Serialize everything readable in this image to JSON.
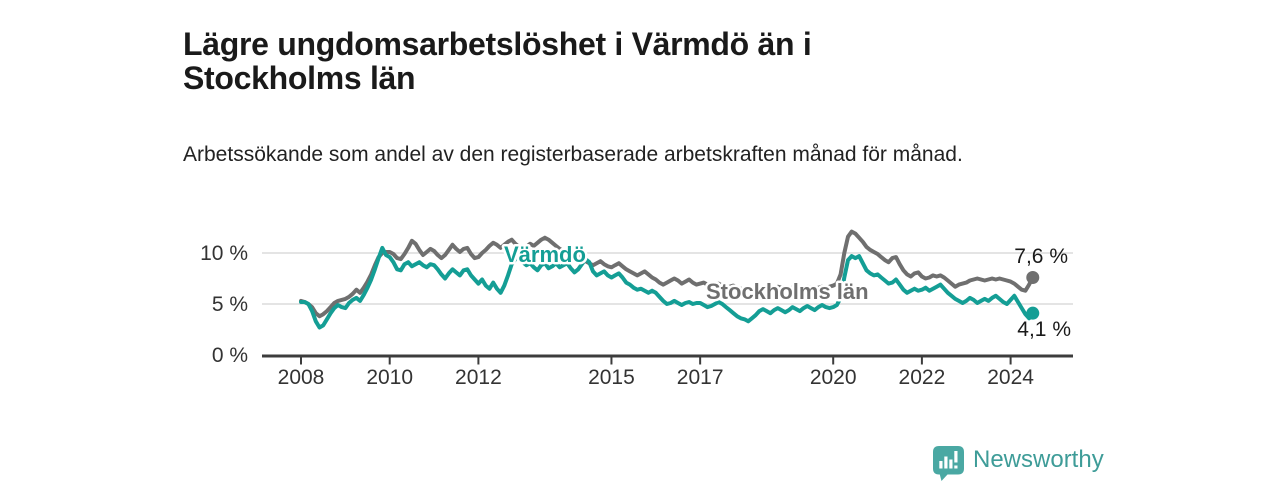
{
  "header": {
    "title": "Lägre ungdomsarbetslöshet i Värmdö än i Stockholms län",
    "subtitle": "Arbetssökande som andel av den registerbaserade arbetskraften månad för månad."
  },
  "footer": {
    "brand": "Newsworthy",
    "logo_icon": "speech-bubble-bar-chart",
    "brand_text_color": "#3e9c98",
    "logo_color": "#4aa8a3"
  },
  "chart_data": {
    "type": "line",
    "title": "Lägre ungdomsarbetslöshet i Värmdö än i Stockholms län",
    "xlabel": "",
    "ylabel": "",
    "x_start_year": 2008,
    "x_step_months": 1,
    "ylim": [
      0,
      12.5
    ],
    "grid": true,
    "grid_values": [
      5,
      10
    ],
    "x_ticks": [
      "2008",
      "2010",
      "2012",
      "2015",
      "2017",
      "2020",
      "2022",
      "2024"
    ],
    "y_ticks": [
      {
        "value": 0,
        "label": "0 %"
      },
      {
        "value": 5,
        "label": "5 %"
      },
      {
        "value": 10,
        "label": "10 %"
      }
    ],
    "colors": {
      "gridline": "#dbdbdb",
      "axis": "#3c3c3c",
      "tick_text": "#333333",
      "end_label_text": "#1a1a1a"
    },
    "series": [
      {
        "name": "Stockholms län",
        "color": "#6f6f6f",
        "end_label": "7,6 %",
        "last_value": 7.6,
        "label_x": 706,
        "label_y": 299,
        "end_label_x": 1068,
        "end_label_y": 263,
        "values": [
          5.3,
          5.2,
          5.0,
          4.7,
          4.1,
          3.8,
          4.0,
          4.3,
          4.7,
          5.1,
          5.3,
          5.4,
          5.5,
          5.7,
          6.0,
          6.4,
          6.1,
          6.6,
          7.2,
          7.9,
          8.8,
          9.6,
          10.0,
          10.1,
          10.1,
          9.9,
          9.5,
          9.4,
          9.9,
          10.5,
          11.2,
          10.9,
          10.3,
          9.8,
          10.1,
          10.4,
          10.2,
          9.8,
          9.5,
          9.8,
          10.3,
          10.8,
          10.4,
          10.1,
          10.4,
          10.5,
          9.9,
          9.5,
          9.6,
          10.0,
          10.3,
          10.7,
          11.0,
          10.8,
          10.5,
          10.8,
          11.1,
          11.3,
          10.9,
          10.6,
          10.4,
          10.6,
          10.9,
          10.7,
          11.0,
          11.3,
          11.5,
          11.3,
          11.0,
          10.7,
          10.4,
          10.2,
          10.1,
          9.9,
          9.6,
          9.8,
          9.5,
          9.2,
          9.0,
          8.8,
          9.0,
          9.2,
          8.9,
          8.7,
          8.6,
          8.8,
          9.0,
          8.7,
          8.4,
          8.2,
          8.0,
          7.8,
          8.0,
          8.2,
          7.9,
          7.6,
          7.4,
          7.1,
          6.9,
          7.1,
          7.3,
          7.5,
          7.3,
          7.0,
          7.2,
          7.4,
          7.1,
          6.9,
          7.0,
          7.1,
          6.9,
          6.7,
          6.8,
          7.0,
          6.8,
          6.6,
          6.7,
          6.8,
          6.6,
          6.5,
          6.4,
          6.3,
          6.5,
          6.6,
          6.5,
          6.7,
          6.6,
          6.4,
          6.5,
          6.7,
          6.6,
          6.5,
          6.5,
          6.6,
          6.5,
          6.4,
          6.5,
          6.7,
          6.6,
          6.5,
          6.6,
          6.7,
          6.6,
          6.7,
          6.8,
          7.0,
          7.9,
          10.0,
          11.6,
          12.1,
          11.9,
          11.5,
          11.1,
          10.6,
          10.3,
          10.1,
          9.9,
          9.6,
          9.3,
          9.1,
          9.5,
          9.6,
          8.9,
          8.3,
          7.9,
          7.7,
          8.0,
          8.1,
          7.7,
          7.5,
          7.6,
          7.8,
          7.7,
          7.8,
          7.6,
          7.3,
          7.0,
          6.7,
          6.9,
          7.0,
          7.1,
          7.3,
          7.4,
          7.5,
          7.4,
          7.3,
          7.4,
          7.5,
          7.4,
          7.5,
          7.4,
          7.3,
          7.2,
          7.0,
          6.7,
          6.4,
          6.3,
          6.9,
          7.6
        ]
      },
      {
        "name": "Värmdö",
        "color": "#149e95",
        "end_label": "4,1 %",
        "last_value": 4.1,
        "label_x": 504,
        "label_y": 262,
        "end_label_x": 1071,
        "end_label_y": 336,
        "values": [
          5.2,
          5.2,
          5.0,
          4.3,
          3.3,
          2.7,
          2.9,
          3.5,
          4.1,
          4.6,
          4.9,
          4.7,
          4.6,
          5.1,
          5.4,
          5.6,
          5.3,
          5.9,
          6.6,
          7.4,
          8.4,
          9.5,
          10.5,
          9.8,
          9.6,
          9.1,
          8.4,
          8.3,
          8.9,
          9.1,
          8.7,
          8.9,
          9.1,
          8.8,
          8.6,
          8.9,
          8.8,
          8.4,
          7.9,
          7.5,
          8.0,
          8.4,
          8.1,
          7.8,
          8.3,
          8.4,
          7.8,
          7.4,
          7.0,
          7.4,
          6.8,
          6.5,
          7.1,
          6.5,
          6.1,
          6.8,
          7.8,
          8.9,
          9.4,
          9.7,
          9.1,
          8.8,
          9.0,
          8.6,
          8.3,
          8.8,
          9.0,
          8.5,
          8.7,
          9.0,
          8.6,
          8.8,
          9.0,
          8.5,
          8.1,
          8.4,
          8.9,
          9.4,
          9.1,
          8.2,
          7.8,
          8.0,
          8.2,
          7.8,
          7.6,
          7.8,
          8.0,
          7.6,
          7.1,
          6.9,
          6.6,
          6.4,
          6.5,
          6.3,
          6.1,
          6.3,
          6.1,
          5.7,
          5.3,
          5.0,
          5.1,
          5.3,
          5.1,
          4.9,
          5.1,
          5.2,
          5.0,
          5.1,
          5.1,
          4.9,
          4.7,
          4.8,
          5.0,
          5.2,
          5.0,
          4.7,
          4.4,
          4.1,
          3.8,
          3.6,
          3.5,
          3.3,
          3.6,
          3.9,
          4.3,
          4.5,
          4.3,
          4.1,
          4.4,
          4.6,
          4.4,
          4.2,
          4.4,
          4.7,
          4.5,
          4.3,
          4.6,
          4.8,
          4.6,
          4.4,
          4.7,
          4.9,
          4.7,
          4.6,
          4.7,
          4.9,
          5.6,
          7.6,
          9.3,
          9.7,
          9.5,
          9.7,
          9.0,
          8.3,
          8.0,
          7.8,
          7.9,
          7.6,
          7.3,
          7.0,
          7.1,
          7.4,
          6.9,
          6.4,
          6.1,
          6.3,
          6.5,
          6.3,
          6.4,
          6.6,
          6.3,
          6.5,
          6.7,
          6.9,
          6.5,
          6.1,
          5.8,
          5.5,
          5.3,
          5.1,
          5.3,
          5.6,
          5.4,
          5.1,
          5.3,
          5.5,
          5.3,
          5.6,
          5.8,
          5.5,
          5.2,
          5.0,
          5.4,
          5.8,
          5.2,
          4.6,
          4.0,
          3.6,
          4.1
        ]
      }
    ]
  }
}
